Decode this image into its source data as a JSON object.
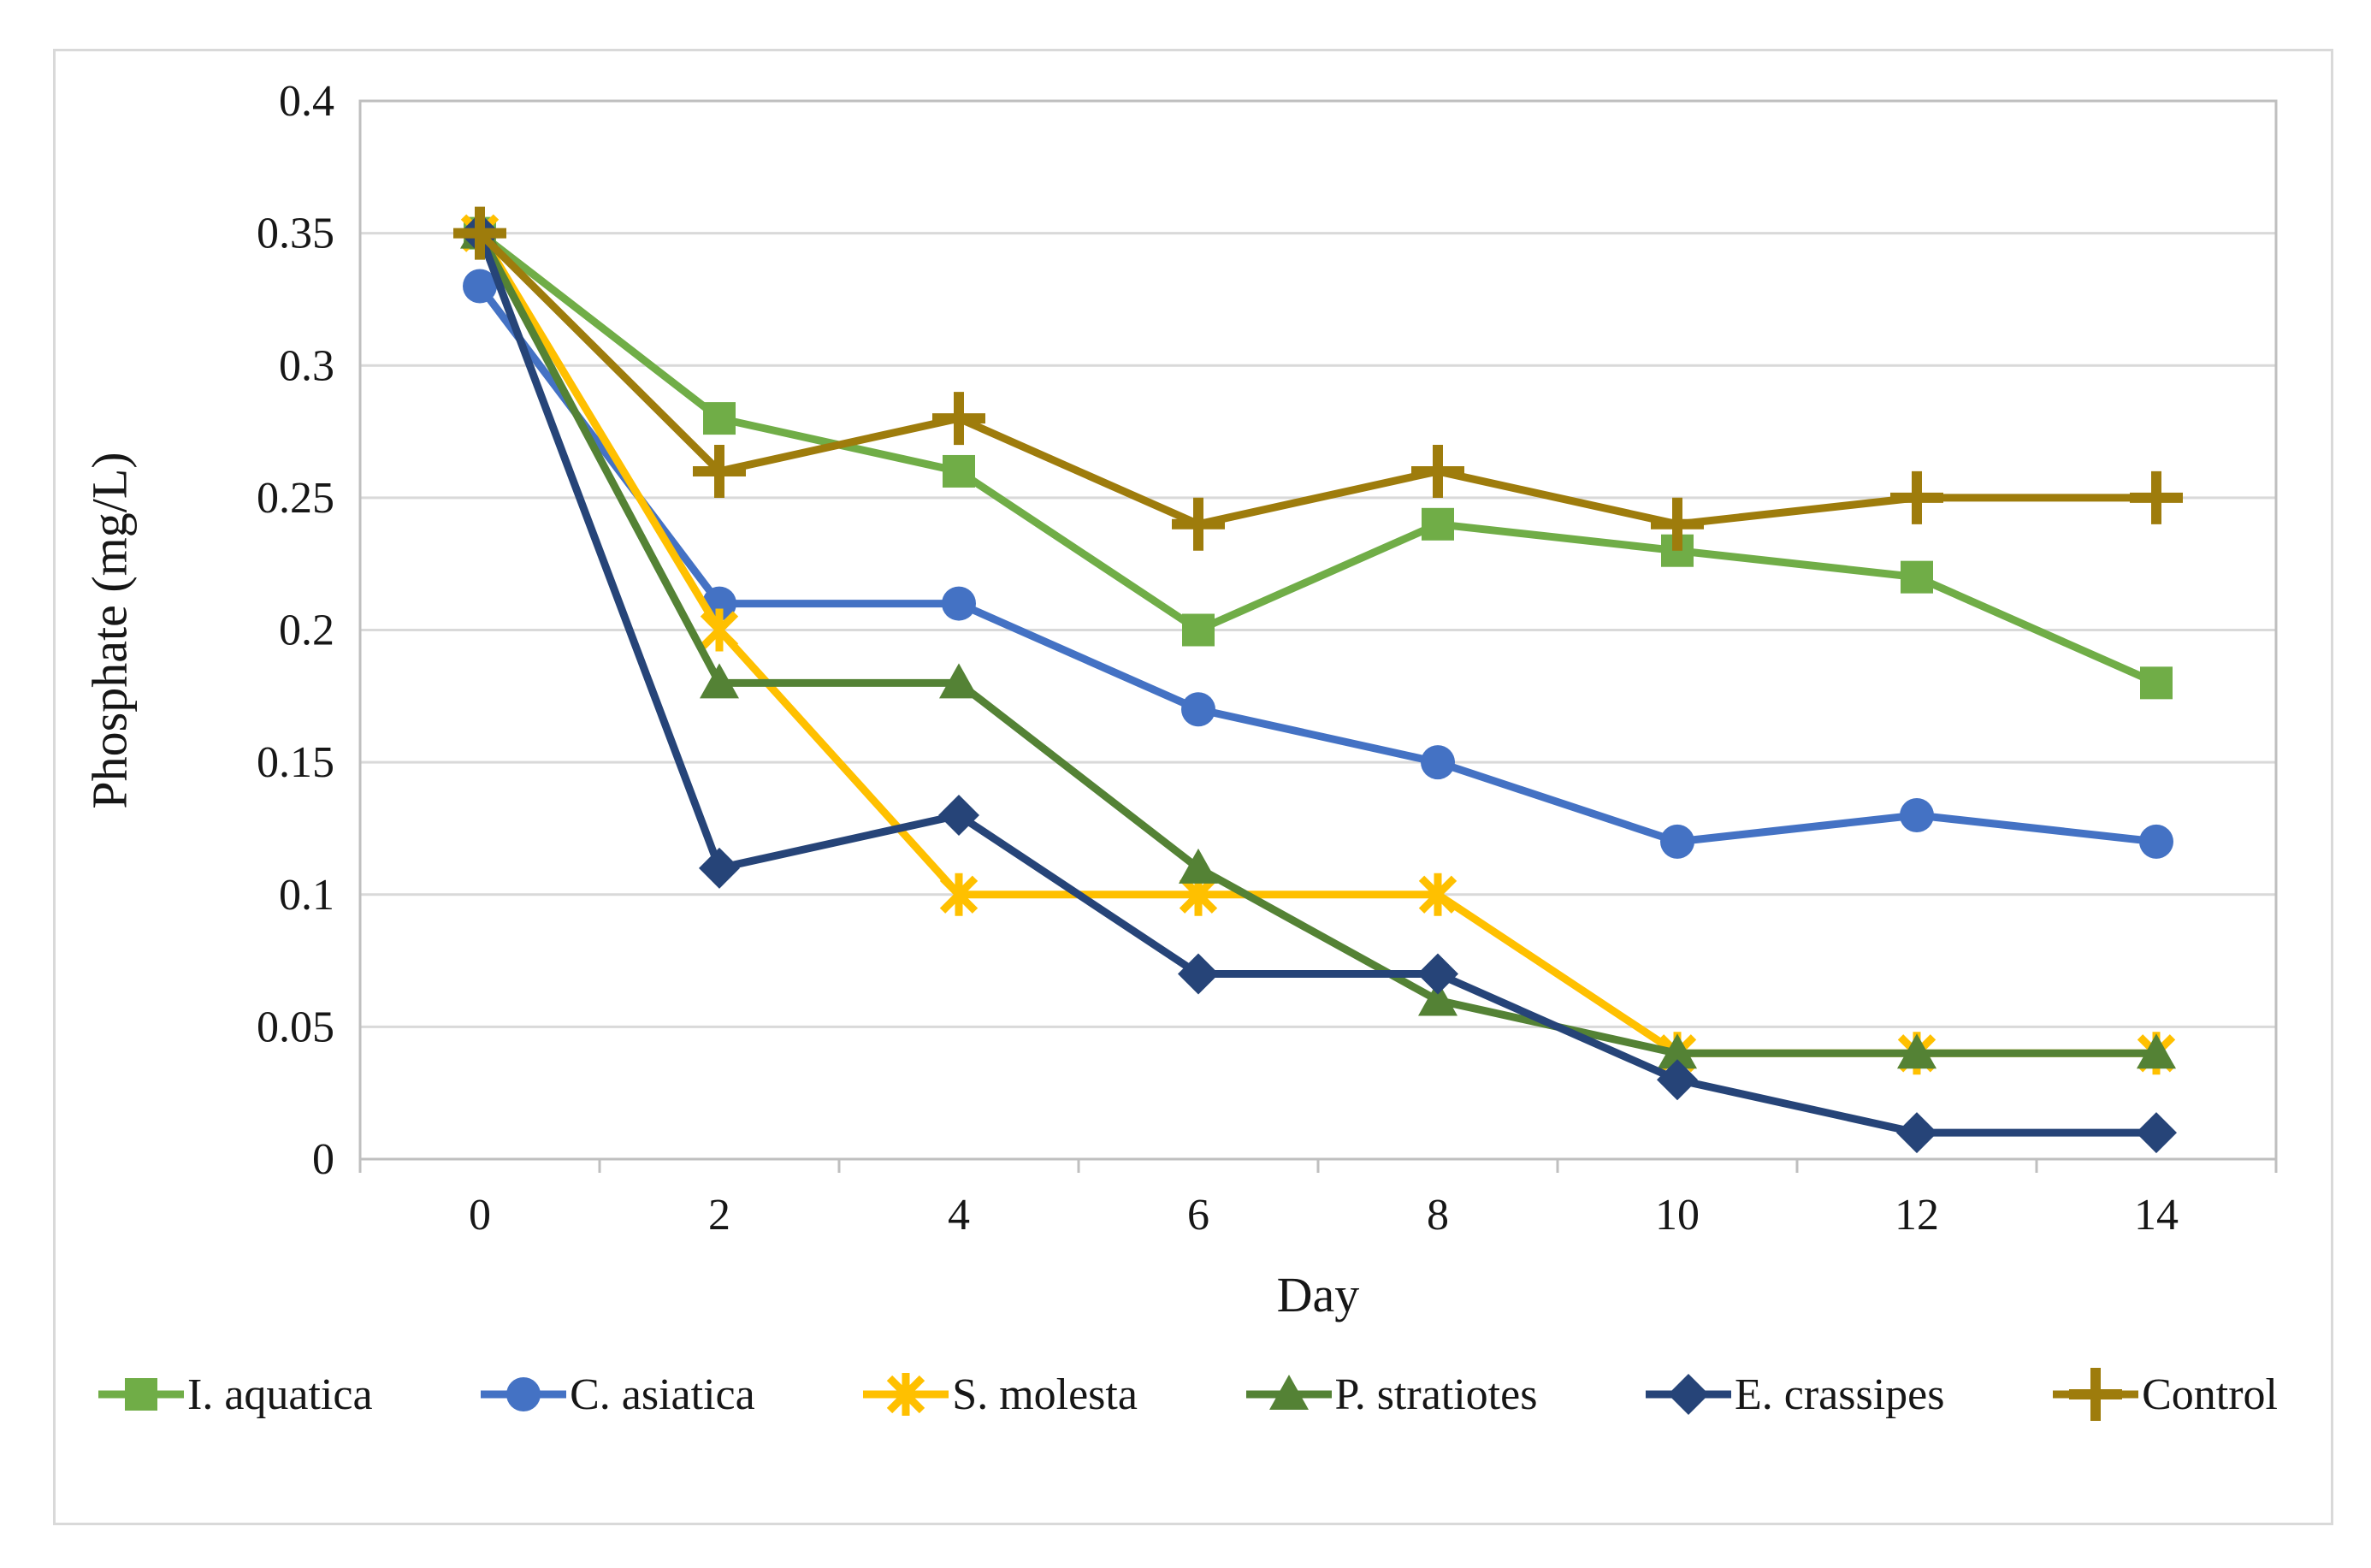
{
  "figure": {
    "border_color": "#d9d9d9",
    "background_color": "#ffffff",
    "axis_line_color": "#bfbfbf",
    "gridline_color": "#d9d9d9",
    "text_color": "#161616"
  },
  "chart_data": {
    "type": "line",
    "title": "",
    "xlabel": "Day",
    "ylabel": "Phosphate (mg/L)",
    "x_ticks": [
      "0",
      "2",
      "4",
      "6",
      "8",
      "10",
      "12",
      "14"
    ],
    "y_ticks": [
      "0",
      "0.05",
      "0.1",
      "0.15",
      "0.2",
      "0.25",
      "0.3",
      "0.35",
      "0.4"
    ],
    "ylim": [
      0,
      0.4
    ],
    "grid": "horizontal",
    "legend_position": "bottom",
    "categories": [
      0,
      2,
      4,
      6,
      8,
      10,
      12,
      14
    ],
    "series": [
      {
        "name": "I. aquatica",
        "color": "#70AD47",
        "marker": "square",
        "values": [
          0.35,
          0.28,
          0.26,
          0.2,
          0.24,
          0.23,
          0.22,
          0.18
        ]
      },
      {
        "name": "C. asiatica",
        "color": "#4472C4",
        "marker": "circle",
        "values": [
          0.33,
          0.21,
          0.21,
          0.17,
          0.15,
          0.12,
          0.13,
          0.12
        ]
      },
      {
        "name": "S. molesta",
        "color": "#FFC000",
        "marker": "asterisk",
        "values": [
          0.35,
          0.2,
          0.1,
          0.1,
          0.1,
          0.04,
          0.04,
          0.04
        ]
      },
      {
        "name": "P. stratiotes",
        "color": "#548235",
        "marker": "triangle",
        "values": [
          0.35,
          0.18,
          0.18,
          0.11,
          0.06,
          0.04,
          0.04,
          0.04
        ]
      },
      {
        "name": "E. crassipes",
        "color": "#264478",
        "marker": "diamond",
        "values": [
          0.35,
          0.11,
          0.13,
          0.07,
          0.07,
          0.03,
          0.01,
          0.01
        ]
      },
      {
        "name": "Control",
        "color": "#9E7C0C",
        "marker": "plus",
        "values": [
          0.35,
          0.26,
          0.28,
          0.24,
          0.26,
          0.24,
          0.25,
          0.25
        ]
      }
    ]
  }
}
